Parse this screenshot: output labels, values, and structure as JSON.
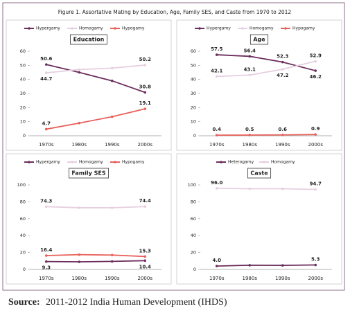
{
  "title": "Figure 1. Assortative Mating by Education, Age, Family SES, and Caste from 1970 to 2012",
  "source_label": "Source:",
  "source": "2011-2012 India Human Development (IHDS)",
  "chart_data": [
    {
      "type": "line",
      "title": "Education",
      "categories": [
        "1970s",
        "1980s",
        "1990s",
        "2000s"
      ],
      "ylim": [
        0,
        60
      ],
      "yticks": [
        0,
        10,
        20,
        30,
        40,
        50,
        60
      ],
      "series": [
        {
          "name": "Hypergamy",
          "color": "#6b2d5c",
          "values": [
            50.6,
            45,
            39,
            30.8
          ],
          "value_labels": [
            "50.6",
            null,
            null,
            "30.8"
          ]
        },
        {
          "name": "Homogamy",
          "color": "#e6cfe0",
          "values": [
            44.7,
            47,
            48,
            50.2
          ],
          "value_labels": [
            "44.7",
            null,
            null,
            "50.2"
          ]
        },
        {
          "name": "Hypogamy",
          "color": "#e8605a",
          "values": [
            4.7,
            9,
            13.5,
            19.1
          ],
          "value_labels": [
            "4.7",
            null,
            null,
            "19.1"
          ]
        }
      ]
    },
    {
      "type": "line",
      "title": "Age",
      "categories": [
        "1970s",
        "1980s",
        "1990s",
        "2000s"
      ],
      "ylim": [
        0,
        60
      ],
      "yticks": [
        0,
        10,
        20,
        30,
        40,
        50,
        60
      ],
      "series": [
        {
          "name": "Hypergamy",
          "color": "#6b2d5c",
          "values": [
            57.5,
            56.4,
            52.3,
            46.2
          ],
          "value_labels": [
            "57.5",
            "56.4",
            "52.3",
            "46.2"
          ]
        },
        {
          "name": "Homogamy",
          "color": "#e6cfe0",
          "values": [
            42.1,
            43.1,
            47.2,
            52.9
          ],
          "value_labels": [
            "42.1",
            "43.1",
            "47.2",
            "52.9"
          ]
        },
        {
          "name": "Hypogamy",
          "color": "#e8605a",
          "values": [
            0.4,
            0.5,
            0.6,
            0.9
          ],
          "value_labels": [
            "0.4",
            "0.5",
            "0.6",
            "0.9"
          ]
        }
      ]
    },
    {
      "type": "line",
      "title": "Family SES",
      "categories": [
        "1970s",
        "1980s",
        "1990s",
        "2000s"
      ],
      "ylim": [
        0,
        100
      ],
      "yticks": [
        0,
        20,
        40,
        60,
        80,
        100
      ],
      "series": [
        {
          "name": "Hypergamy",
          "color": "#6b2d5c",
          "values": [
            9.3,
            9,
            9.5,
            10.4
          ],
          "value_labels": [
            "9.3",
            null,
            null,
            "10.4"
          ]
        },
        {
          "name": "Homogamy",
          "color": "#e6cfe0",
          "values": [
            74.3,
            73,
            73,
            74.4
          ],
          "value_labels": [
            "74.3",
            null,
            null,
            "74.4"
          ]
        },
        {
          "name": "Hypogamy",
          "color": "#e8605a",
          "values": [
            16.4,
            17.5,
            17,
            15.3
          ],
          "value_labels": [
            "16.4",
            null,
            null,
            "15.3"
          ]
        }
      ]
    },
    {
      "type": "line",
      "title": "Caste",
      "categories": [
        "1970s",
        "1980s",
        "1990s",
        "2000s"
      ],
      "ylim": [
        0,
        100
      ],
      "yticks": [
        0,
        20,
        40,
        60,
        80,
        100
      ],
      "series": [
        {
          "name": "Heterogamy",
          "color": "#6b2d5c",
          "values": [
            4.0,
            5,
            4.8,
            5.3
          ],
          "value_labels": [
            "4.0",
            null,
            null,
            "5.3"
          ]
        },
        {
          "name": "Homogamy",
          "color": "#e6cfe0",
          "values": [
            96.0,
            95.5,
            95.5,
            94.7
          ],
          "value_labels": [
            "96.0",
            null,
            null,
            "94.7"
          ]
        }
      ]
    }
  ]
}
